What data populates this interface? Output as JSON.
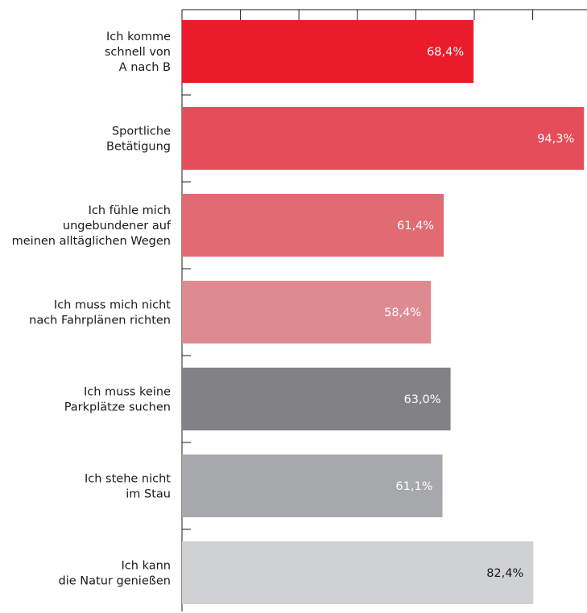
{
  "chart_data": {
    "type": "bar",
    "orientation": "horizontal",
    "categories": [
      [
        "Ich komme",
        "schnell von",
        "A nach B"
      ],
      [
        "Sportliche",
        "Betätigung"
      ],
      [
        "Ich fühle mich",
        "ungebundener auf",
        "meinen alltäglichen Wegen"
      ],
      [
        "Ich muss mich nicht",
        "nach Fahrplänen richten"
      ],
      [
        "Ich muss keine",
        "Parkplätze suchen"
      ],
      [
        "Ich stehe nicht",
        "im Stau"
      ],
      [
        "Ich kann",
        "die Natur genießen"
      ]
    ],
    "values": [
      68.4,
      94.3,
      61.4,
      58.4,
      63.0,
      61.1,
      82.4
    ],
    "value_labels": [
      "68,4%",
      "94,3%",
      "61,4%",
      "58,4%",
      "63,0%",
      "61,1%",
      "82,4%"
    ],
    "colors": [
      "#ea1c2b",
      "#e54d5a",
      "#e26a73",
      "#dd8b91",
      "#828286",
      "#a7a8ab",
      "#d0d1d3"
    ],
    "label_colors": [
      "#ffffff",
      "#ffffff",
      "#ffffff",
      "#ffffff",
      "#ffffff",
      "#ffffff",
      "#1a1a1a"
    ],
    "xlim": [
      0,
      95
    ],
    "grid": false,
    "top_axis_ticks": 8
  }
}
